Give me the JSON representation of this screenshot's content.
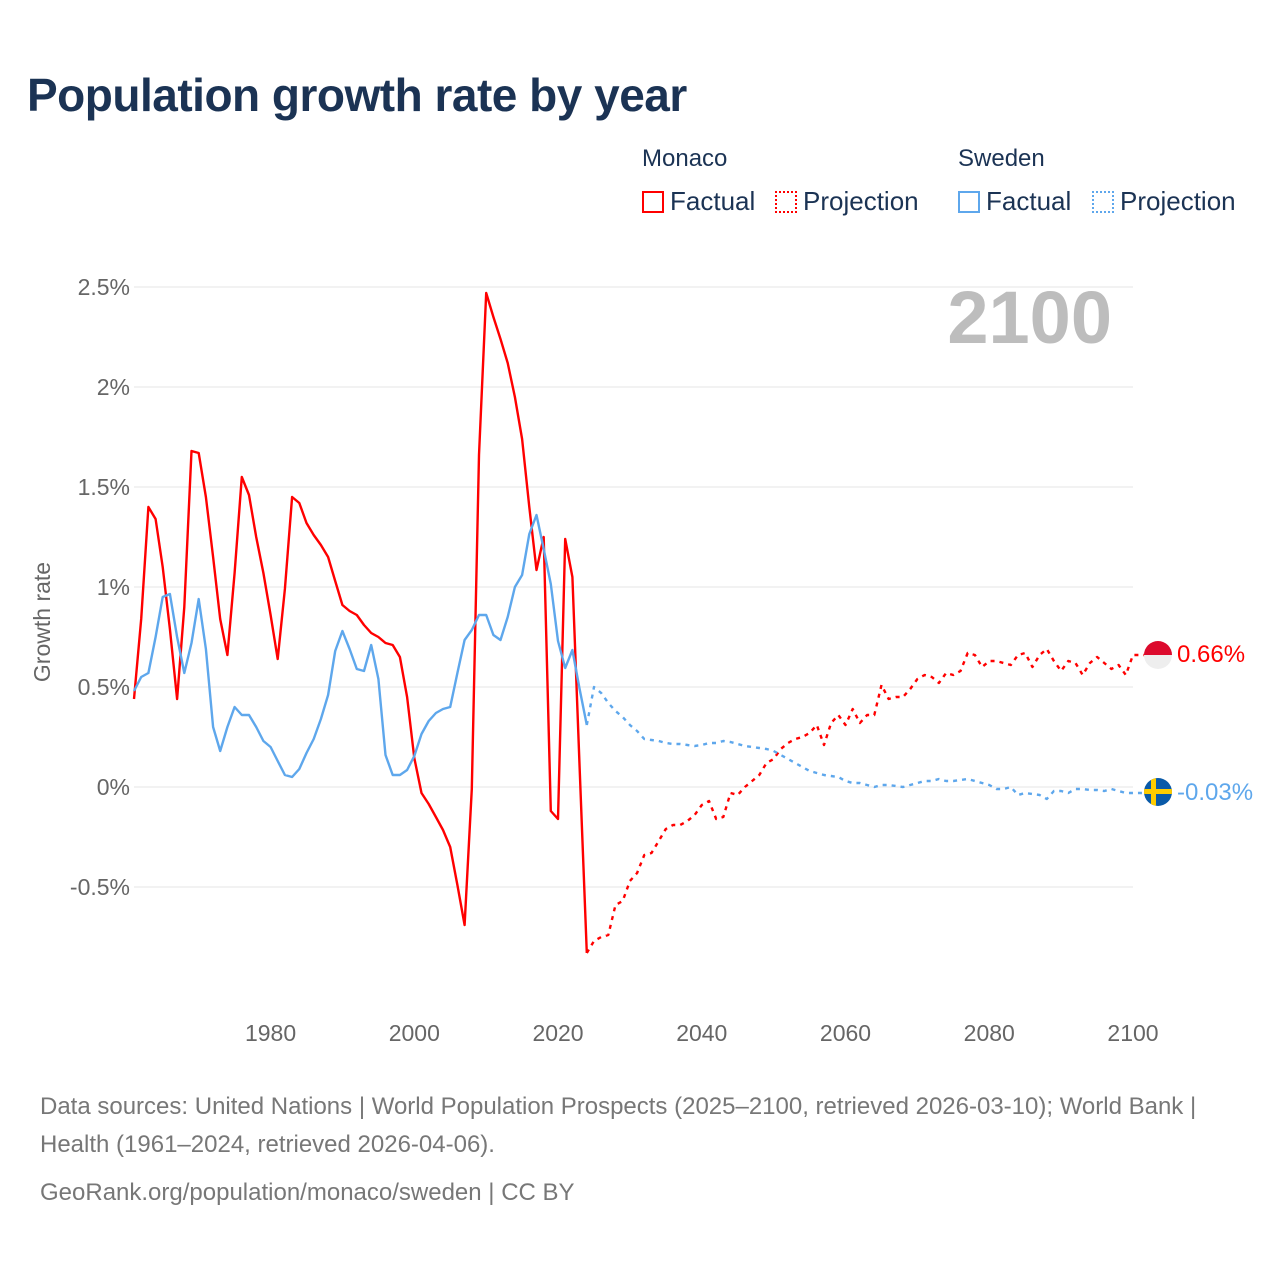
{
  "title": "Population growth rate by year",
  "legend": {
    "groups": [
      {
        "name": "Monaco",
        "color": "#ff0000",
        "items": [
          "Factual",
          "Projection"
        ]
      },
      {
        "name": "Sweden",
        "color": "#5ea7ec",
        "items": [
          "Factual",
          "Projection"
        ]
      }
    ]
  },
  "year_watermark": "2100",
  "end_labels": {
    "monaco": "0.66%",
    "sweden": "-0.03%"
  },
  "footer": {
    "sources": "Data sources: United Nations | World Population Prospects (2025–2100, retrieved 2026-03-10); World Bank | Health (1961–2024, retrieved 2026-04-06).",
    "credit": "GeoRank.org/population/monaco/sweden | CC BY"
  },
  "chart_data": {
    "type": "line",
    "title": "Population growth rate by year",
    "xlabel": "",
    "ylabel": "Growth rate",
    "xlim": [
      1961,
      2100
    ],
    "ylim": [
      -1.0,
      2.5
    ],
    "x_ticks": [
      1980,
      2000,
      2020,
      2040,
      2060,
      2080,
      2100
    ],
    "x_tick_labels": [
      "1980",
      "2000",
      "2020",
      "2040",
      "2060",
      "2080",
      "2100"
    ],
    "y_ticks": [
      -0.5,
      0,
      0.5,
      1,
      1.5,
      2,
      2.5
    ],
    "y_tick_labels": [
      "-0.5%",
      "0%",
      "0.5%",
      "1%",
      "1.5%",
      "2%",
      "2.5%"
    ],
    "grid": true,
    "legend_position": "top-right",
    "series": [
      {
        "name": "Monaco Factual",
        "color": "#ff0000",
        "style": "solid",
        "start_year": 1961,
        "values": [
          0.44,
          0.84,
          1.4,
          1.34,
          1.1,
          0.79,
          0.44,
          0.9,
          1.68,
          1.67,
          1.45,
          1.15,
          0.84,
          0.66,
          1.07,
          1.55,
          1.46,
          1.25,
          1.07,
          0.86,
          0.64,
          0.99,
          1.45,
          1.42,
          1.32,
          1.26,
          1.21,
          1.15,
          1.03,
          0.91,
          0.88,
          0.86,
          0.81,
          0.77,
          0.75,
          0.72,
          0.71,
          0.65,
          0.45,
          0.145,
          -0.03,
          -0.085,
          -0.15,
          -0.215,
          -0.3,
          -0.49,
          -0.69,
          -0.01,
          1.66,
          2.47,
          2.35,
          2.24,
          2.12,
          1.95,
          1.74,
          1.4,
          1.085,
          1.25,
          -0.12,
          -0.16,
          1.24,
          1.05,
          0.1,
          -0.83
        ]
      },
      {
        "name": "Monaco Projection",
        "color": "#ff0000",
        "style": "dotted",
        "start_year": 2024,
        "values": [
          -0.83,
          -0.77,
          -0.75,
          -0.74,
          -0.59,
          -0.57,
          -0.47,
          -0.43,
          -0.34,
          -0.33,
          -0.27,
          -0.21,
          -0.19,
          -0.19,
          -0.17,
          -0.14,
          -0.09,
          -0.07,
          -0.16,
          -0.15,
          -0.03,
          -0.04,
          0.0,
          0.03,
          0.06,
          0.12,
          0.14,
          0.19,
          0.22,
          0.24,
          0.25,
          0.27,
          0.31,
          0.21,
          0.32,
          0.36,
          0.31,
          0.39,
          0.32,
          0.36,
          0.36,
          0.51,
          0.44,
          0.45,
          0.45,
          0.49,
          0.54,
          0.56,
          0.55,
          0.52,
          0.57,
          0.56,
          0.58,
          0.67,
          0.66,
          0.6,
          0.63,
          0.63,
          0.62,
          0.61,
          0.66,
          0.67,
          0.6,
          0.66,
          0.69,
          0.63,
          0.58,
          0.63,
          0.62,
          0.56,
          0.62,
          0.65,
          0.62,
          0.59,
          0.61,
          0.56,
          0.66
        ]
      },
      {
        "name": "Sweden Factual",
        "color": "#5ea7ec",
        "style": "solid",
        "start_year": 1961,
        "values": [
          0.48,
          0.55,
          0.57,
          0.75,
          0.95,
          0.965,
          0.75,
          0.57,
          0.72,
          0.94,
          0.69,
          0.3,
          0.18,
          0.3,
          0.4,
          0.36,
          0.36,
          0.3,
          0.23,
          0.2,
          0.13,
          0.06,
          0.05,
          0.09,
          0.17,
          0.24,
          0.34,
          0.46,
          0.68,
          0.78,
          0.69,
          0.59,
          0.58,
          0.71,
          0.54,
          0.16,
          0.06,
          0.06,
          0.085,
          0.155,
          0.265,
          0.33,
          0.37,
          0.39,
          0.4,
          0.57,
          0.735,
          0.785,
          0.86,
          0.86,
          0.76,
          0.735,
          0.85,
          1.0,
          1.06,
          1.265,
          1.36,
          1.19,
          1.015,
          0.73,
          0.595,
          0.685,
          0.49,
          0.31
        ]
      },
      {
        "name": "Sweden Projection",
        "color": "#5ea7ec",
        "style": "dotted",
        "start_year": 2024,
        "values": [
          0.31,
          0.5,
          0.47,
          0.42,
          0.38,
          0.35,
          0.31,
          0.28,
          0.24,
          0.235,
          0.23,
          0.22,
          0.215,
          0.215,
          0.21,
          0.205,
          0.21,
          0.22,
          0.22,
          0.23,
          0.225,
          0.215,
          0.205,
          0.2,
          0.195,
          0.19,
          0.18,
          0.16,
          0.14,
          0.12,
          0.1,
          0.08,
          0.07,
          0.06,
          0.055,
          0.05,
          0.03,
          0.02,
          0.02,
          0.01,
          0.0,
          0.01,
          0.01,
          0.005,
          0.0,
          0.01,
          0.02,
          0.03,
          0.03,
          0.04,
          0.03,
          0.03,
          0.035,
          0.04,
          0.03,
          0.02,
          0.01,
          -0.01,
          -0.01,
          0.0,
          -0.04,
          -0.03,
          -0.035,
          -0.04,
          -0.06,
          -0.02,
          -0.02,
          -0.03,
          -0.01,
          -0.01,
          -0.015,
          -0.015,
          -0.02,
          -0.01,
          -0.02,
          -0.03,
          -0.03
        ]
      }
    ]
  }
}
